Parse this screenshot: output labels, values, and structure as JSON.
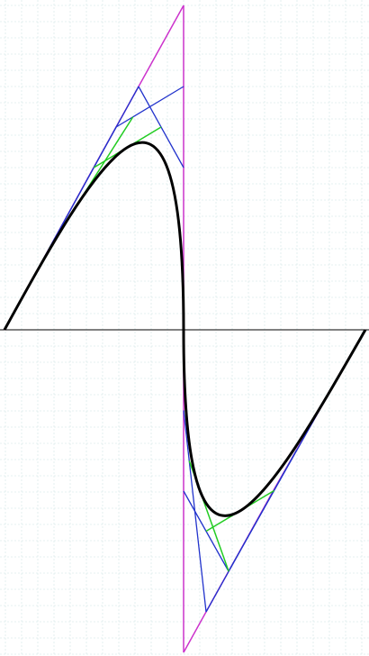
{
  "diagram": {
    "type": "bezier-construction",
    "description_free": true,
    "colors": {
      "background": "#ffffff",
      "grid_major": "#c9e0e0",
      "grid_minor": "#dcebeb",
      "axis": "#000000",
      "control_polygon": "#cc33cc",
      "level1": "#2233cc",
      "level2": "#22cc22",
      "curve": "#000000"
    },
    "grid": true,
    "axis": true,
    "curve_segments": 2
  }
}
